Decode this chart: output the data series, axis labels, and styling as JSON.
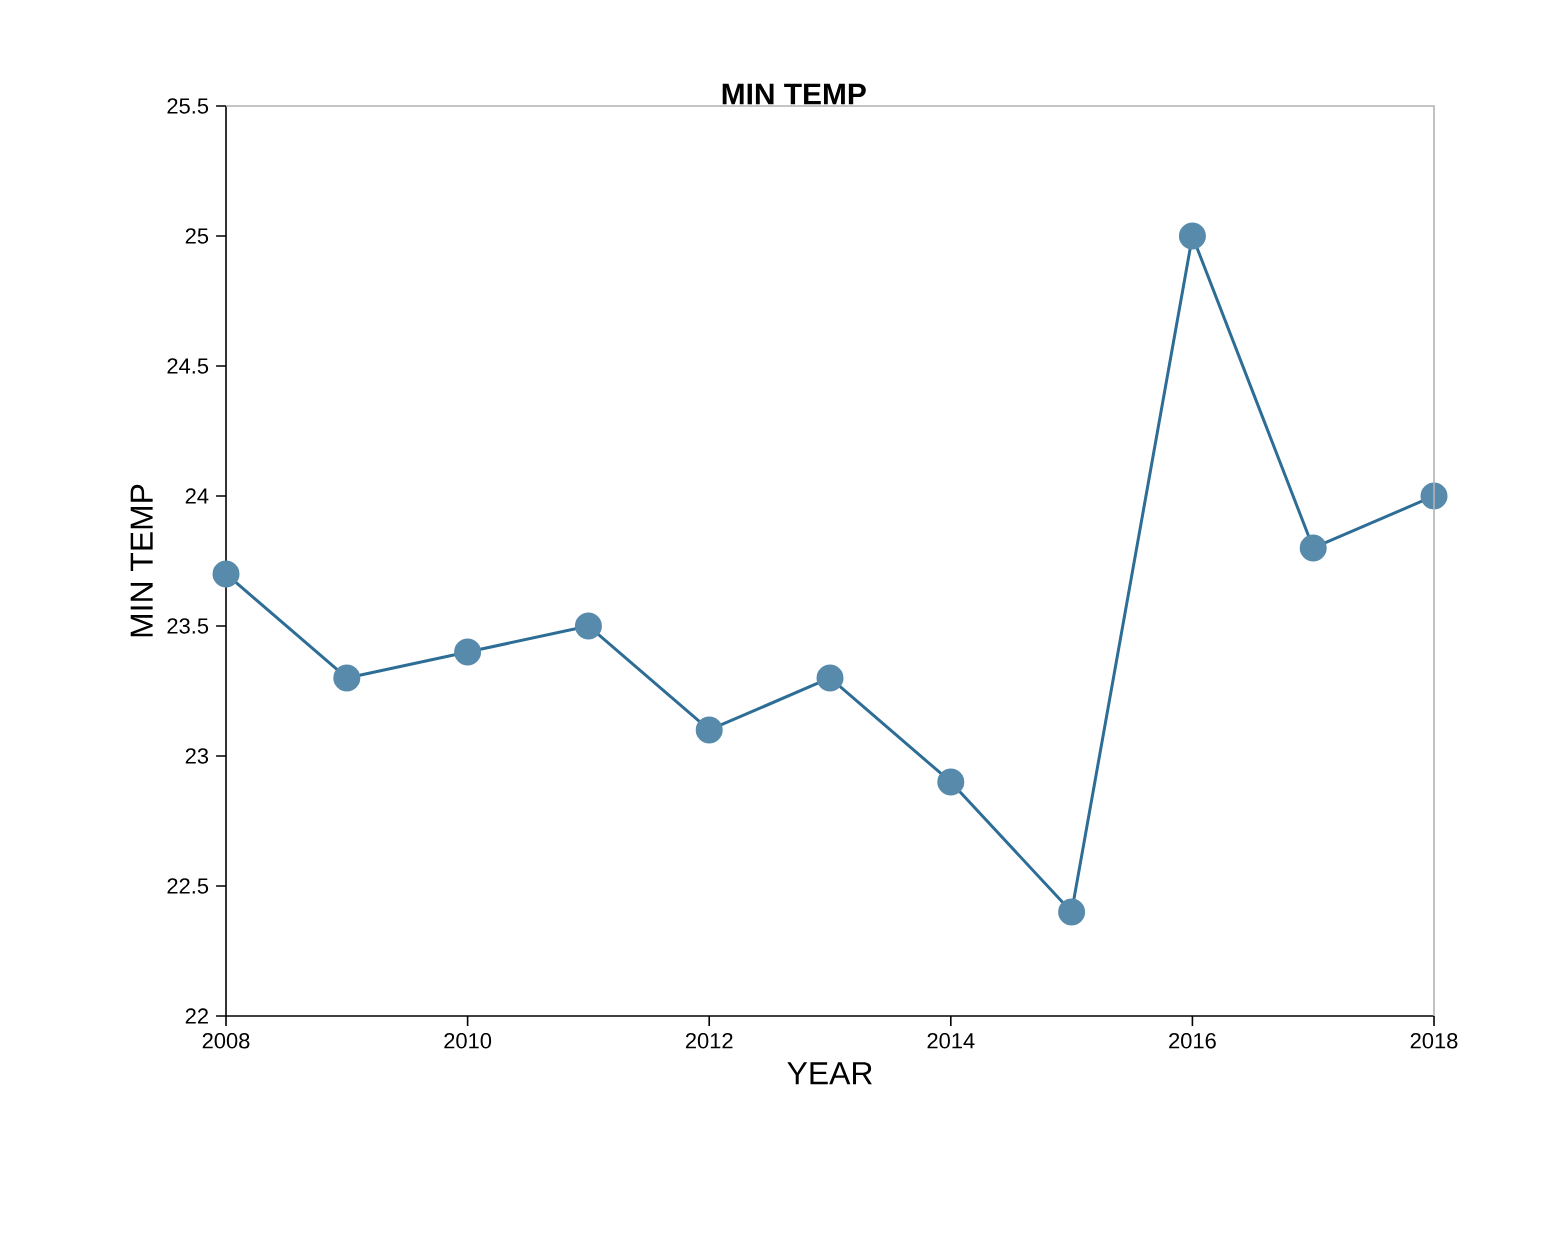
{
  "chart_data": {
    "type": "line",
    "title": "MIN TEMP",
    "xlabel": "YEAR",
    "ylabel": "MIN TEMP",
    "x": [
      2008,
      2009,
      2010,
      2011,
      2012,
      2013,
      2014,
      2015,
      2016,
      2017,
      2018
    ],
    "series": [
      {
        "color": "#2e6e96",
        "values": [
          23.7,
          23.3,
          23.4,
          23.5,
          23.1,
          23.3,
          22.9,
          22.4,
          25.0,
          23.8,
          24.0
        ]
      }
    ],
    "xlim": [
      2008,
      2018
    ],
    "xticks": [
      2008,
      2010,
      2012,
      2014,
      2016,
      2018
    ],
    "ylim": [
      22,
      25.5
    ],
    "yticks": [
      22,
      22.5,
      23,
      23.5,
      24,
      24.5,
      25,
      25.5
    ],
    "marker": "circle",
    "line_style": "solid"
  }
}
